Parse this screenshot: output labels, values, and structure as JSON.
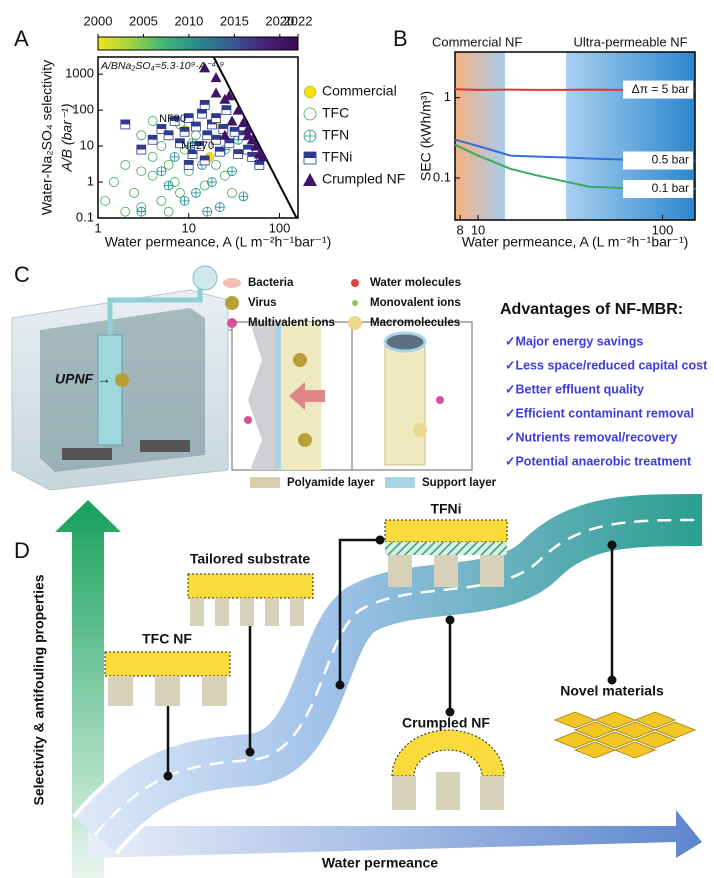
{
  "panels": {
    "a": "A",
    "b": "B",
    "c": "C",
    "d": "D"
  },
  "chart_data": [
    {
      "type": "scatter",
      "log_x": true,
      "log_y": true,
      "xlabel": "Water permeance, A (L m⁻²h⁻¹bar⁻¹)",
      "ylabel": [
        "Water-Na₂SO₄ selectivity",
        "A/B (bar⁻¹)"
      ],
      "xlim": [
        1,
        160
      ],
      "xticks": [
        1,
        10,
        100
      ],
      "ylim": [
        0.1,
        3000
      ],
      "yticks": [
        0.1,
        1,
        10,
        100,
        1000
      ],
      "colorbar": {
        "lim": [
          2000,
          2022
        ],
        "ticks": [
          2000,
          2005,
          2010,
          2015,
          2020,
          2022
        ],
        "colors": [
          "#f2e41b",
          "#9fd33e",
          "#3fb57a",
          "#2a8a8c",
          "#3b5a93",
          "#45207a",
          "#3b0a55"
        ]
      },
      "tradeoff": {
        "label": "A/BNa₂SO₄=5.3·10⁹·A⁻⁴·⁹",
        "coefficient": 5300000000,
        "exponent": -4.9,
        "color": "#000000"
      },
      "annotations": [
        "NF90",
        "NF270"
      ],
      "series": [
        {
          "name": "Commercial",
          "color": "#f5e000",
          "marker": "circle-filled",
          "x": [
            9,
            17,
            20
          ],
          "y": [
            28,
            5,
            40
          ]
        },
        {
          "name": "TFC",
          "color": "#3aa655",
          "marker": "circle-open",
          "x": [
            1.5,
            2,
            2.5,
            3,
            3,
            4,
            4,
            5,
            5,
            6,
            7,
            8,
            8,
            10,
            12,
            2,
            3,
            6,
            15,
            20,
            25,
            1.2,
            4,
            9,
            30
          ],
          "y": [
            1,
            3,
            0.5,
            20,
            2,
            1.5,
            5,
            0.3,
            10,
            3,
            1,
            40,
            0.5,
            2,
            20,
            0.15,
            0.2,
            0.15,
            0.8,
            3,
            1.5,
            0.3,
            50,
            8,
            0.5
          ]
        },
        {
          "name": "TFN",
          "color": "#1b8e8a",
          "marker": "circle-plus",
          "x": [
            3,
            5,
            7,
            9,
            11,
            14,
            18,
            22,
            25,
            30,
            40,
            6,
            16,
            35,
            12
          ],
          "y": [
            0.15,
            2,
            5,
            0.3,
            12,
            3,
            1,
            0.2,
            8,
            2,
            0.4,
            0.8,
            0.15,
            15,
            0.5
          ]
        },
        {
          "name": "TFNi",
          "color": "#2e3b8f",
          "marker": "square-half",
          "x": [
            2,
            3,
            4,
            5,
            6,
            7,
            8,
            9,
            10,
            11,
            12,
            13,
            14,
            15,
            16,
            18,
            20,
            22,
            24,
            26,
            28,
            32,
            35,
            40,
            45,
            50,
            60,
            10,
            15,
            20
          ],
          "y": [
            40,
            8,
            15,
            30,
            20,
            50,
            12,
            25,
            60,
            6,
            35,
            10,
            80,
            4,
            20,
            40,
            15,
            7,
            30,
            100,
            12,
            25,
            6,
            20,
            8,
            5,
            3,
            3,
            140,
            60
          ]
        },
        {
          "name": "Crumpled NF",
          "color": "#3f1466",
          "marker": "triangle",
          "x": [
            15,
            20,
            20,
            25,
            30,
            28,
            35,
            40,
            45,
            50,
            55,
            45,
            65,
            25,
            60
          ],
          "y": [
            1500,
            300,
            800,
            200,
            50,
            250,
            100,
            45,
            30,
            15,
            10,
            20,
            5,
            20,
            6
          ]
        }
      ]
    },
    {
      "type": "line",
      "log_x": true,
      "log_y": true,
      "xlabel": "Water permeance, A (L m⁻²h⁻¹bar⁻¹)",
      "ylabel": "SEC (kWh/m³)",
      "xlim": [
        7.5,
        150
      ],
      "xticks": [
        8,
        10,
        100
      ],
      "ylim": [
        0.03,
        3.7
      ],
      "yticks": [
        0.1,
        1
      ],
      "regions": [
        {
          "label": "Commercial NF",
          "x": [
            7.5,
            14
          ],
          "color": "#f4b183"
        },
        {
          "label": "Ultra-permeable NF",
          "x": [
            30,
            150
          ],
          "color": "#2b86cf"
        }
      ],
      "x": [
        7.5,
        10,
        15,
        20,
        30,
        40,
        60,
        100,
        150
      ],
      "series": [
        {
          "name": "Δπ = 5 bar",
          "color": "#e0343a",
          "values": [
            1.27,
            1.25,
            1.26,
            1.25,
            1.25,
            1.26,
            1.25,
            1.25,
            1.26
          ]
        },
        {
          "name": "0.5 bar",
          "color": "#2f6fd6",
          "values": [
            0.3,
            0.25,
            0.19,
            0.185,
            0.18,
            0.175,
            0.17,
            0.167,
            0.165
          ]
        },
        {
          "name": "0.1 bar",
          "color": "#3aa95f",
          "values": [
            0.26,
            0.19,
            0.13,
            0.11,
            0.09,
            0.078,
            0.075,
            0.074,
            0.073
          ]
        }
      ]
    }
  ],
  "panel_c": {
    "legend": [
      "Bacteria",
      "Virus",
      "Multivalent ions",
      "Water molecules",
      "Monovalent ions",
      "Macromolecules"
    ],
    "module_label": "UPNF",
    "layers": [
      "Polyamide layer",
      "Support layer"
    ],
    "advantages_title": "Advantages of NF-MBR:",
    "advantages": [
      "✓Major energy savings",
      "✓Less space/reduced capital cost",
      "✓Better effluent quality",
      "✓Efficient contaminant removal",
      "✓Nutrients removal/recovery",
      "✓Potential anaerobic treatment"
    ]
  },
  "panel_d": {
    "ylabel": "Selectivity & antifouling properties",
    "xlabel": "Water permeance",
    "stages": [
      "TFC NF",
      "Tailored substrate",
      "TFNi",
      "Crumpled NF",
      "Novel materials"
    ]
  }
}
